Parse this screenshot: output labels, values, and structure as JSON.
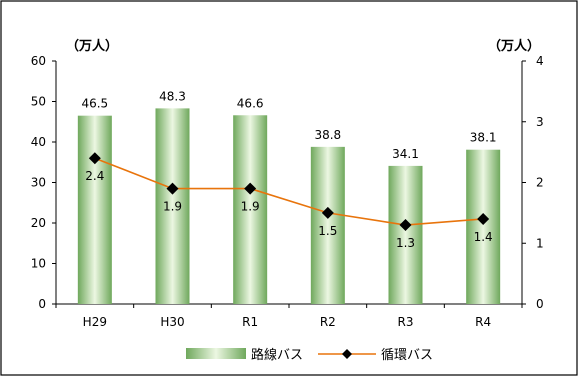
{
  "chart_data": {
    "type": "bar",
    "categories": [
      "H29",
      "H30",
      "R1",
      "R2",
      "R3",
      "R4"
    ],
    "y_unit_left": "（万人）",
    "y_unit_right": "（万人）",
    "ylim_left": [
      0,
      60
    ],
    "yticks_left": [
      0,
      10,
      20,
      30,
      40,
      50,
      60
    ],
    "ylim_right": [
      0,
      4
    ],
    "yticks_right": [
      0,
      1,
      2,
      3,
      4
    ],
    "grid": false,
    "legend_position": "bottom",
    "series": [
      {
        "name": "路線バス",
        "type": "bar",
        "axis": "left",
        "values": [
          46.5,
          48.3,
          46.6,
          38.8,
          34.1,
          38.1
        ],
        "color": "#8fc47a",
        "highlight_color": "#ecf7e2"
      },
      {
        "name": "循環バス",
        "type": "line",
        "axis": "right",
        "values": [
          2.4,
          1.9,
          1.9,
          1.5,
          1.3,
          1.4
        ],
        "line_color": "#e8740c",
        "marker_color": "#000000"
      }
    ]
  }
}
